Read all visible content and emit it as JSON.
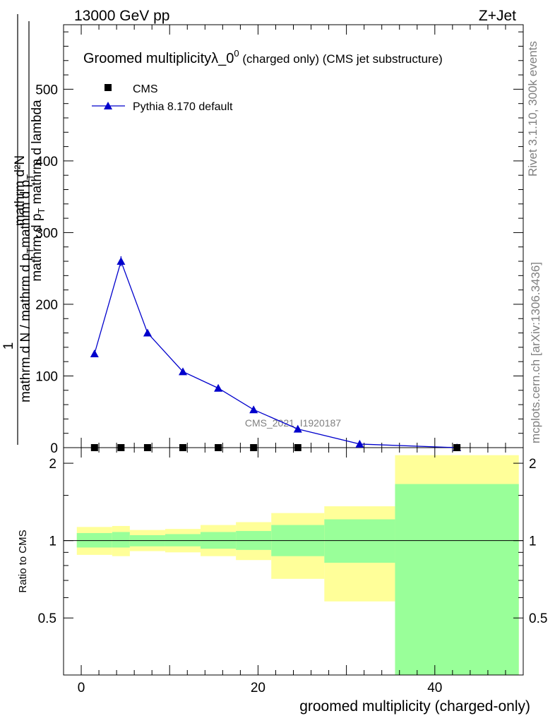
{
  "header": {
    "left": "13000 GeV pp",
    "right": "Z+Jet"
  },
  "side": {
    "rivet": "Rivet 3.1.10,  300k events",
    "mcplots": "mcplots.cern.ch [arXiv:1306.3436]"
  },
  "watermark": "CMS_2021_I1920187",
  "colors": {
    "mc": "#0000cc",
    "data": "#000000",
    "band_inner": "#99ff99",
    "band_outer": "#ffff99"
  },
  "chart_data": [
    {
      "type": "line",
      "title_main": "Groomed multiplicityλ_0",
      "title_sup": "0",
      "title_tail": " (charged only) (CMS jet substructure)",
      "ylabel": {
        "num": "mathrm d²N",
        "den1": "mathrm d p",
        "den1_sub": "T",
        "den1_tail": " mathrm d lambda",
        "factor_num": "1",
        "factor_den": "mathrm d N / mathrm d p",
        "factor_den_sub": "T",
        "factor_den_tail": "mathrm d p",
        "factor_den_sub2": "T"
      },
      "xlim": [
        -2,
        50
      ],
      "ylim": [
        0,
        590
      ],
      "yticks": [
        0,
        100,
        200,
        300,
        400,
        500
      ],
      "ytick_labels": [
        "0",
        "100",
        "200",
        "300",
        "400",
        "500"
      ],
      "legend": {
        "placement": "top-left",
        "entries": [
          "CMS",
          "Pythia 8.170 default"
        ]
      },
      "series": [
        {
          "name": "CMS",
          "marker": "square",
          "x": [
            1.5,
            4.5,
            7.5,
            11.5,
            15.5,
            19.5,
            24.5,
            42.5
          ],
          "y": [
            0,
            0,
            0,
            0,
            0,
            0,
            0,
            0
          ]
        },
        {
          "name": "Pythia 8.170 default",
          "marker": "triangle",
          "x": [
            1.5,
            4.5,
            7.5,
            11.5,
            15.5,
            19.5,
            24.5,
            31.5,
            42.5
          ],
          "y": [
            131,
            260,
            160,
            106,
            83,
            53,
            26,
            5,
            0
          ],
          "yerr": [
            3,
            7,
            3,
            2,
            2,
            2,
            1,
            1,
            0
          ]
        }
      ]
    },
    {
      "type": "area",
      "ylabel": "Ratio to CMS",
      "xlabel": "groomed multiplicity (charged-only)",
      "xlim": [
        -2,
        50
      ],
      "ylim": [
        0.3,
        2.3
      ],
      "yticks": [
        0.5,
        1,
        2
      ],
      "ytick_labels": [
        "0.5",
        "1",
        "2"
      ],
      "xticks": [
        0,
        20,
        40
      ],
      "xtick_labels": [
        "0",
        "20",
        "40"
      ],
      "reference": 1.0,
      "bins": [
        {
          "lo": -0.5,
          "hi": 3.5,
          "inner": [
            0.94,
            1.07
          ],
          "outer": [
            0.88,
            1.13
          ]
        },
        {
          "lo": 3.5,
          "hi": 5.5,
          "inner": [
            0.94,
            1.08
          ],
          "outer": [
            0.87,
            1.14
          ]
        },
        {
          "lo": 5.5,
          "hi": 9.5,
          "inner": [
            0.95,
            1.05
          ],
          "outer": [
            0.91,
            1.1
          ]
        },
        {
          "lo": 9.5,
          "hi": 13.5,
          "inner": [
            0.95,
            1.06
          ],
          "outer": [
            0.9,
            1.11
          ]
        },
        {
          "lo": 13.5,
          "hi": 17.5,
          "inner": [
            0.93,
            1.08
          ],
          "outer": [
            0.87,
            1.15
          ]
        },
        {
          "lo": 17.5,
          "hi": 21.5,
          "inner": [
            0.92,
            1.09
          ],
          "outer": [
            0.84,
            1.18
          ]
        },
        {
          "lo": 21.5,
          "hi": 27.5,
          "inner": [
            0.87,
            1.15
          ],
          "outer": [
            0.71,
            1.28
          ]
        },
        {
          "lo": 27.5,
          "hi": 35.5,
          "inner": [
            0.82,
            1.21
          ],
          "outer": [
            0.58,
            1.36
          ]
        },
        {
          "lo": 35.5,
          "hi": 49.5,
          "inner": [
            0.0,
            1.66
          ],
          "outer": [
            0.0,
            2.15
          ]
        }
      ]
    }
  ]
}
